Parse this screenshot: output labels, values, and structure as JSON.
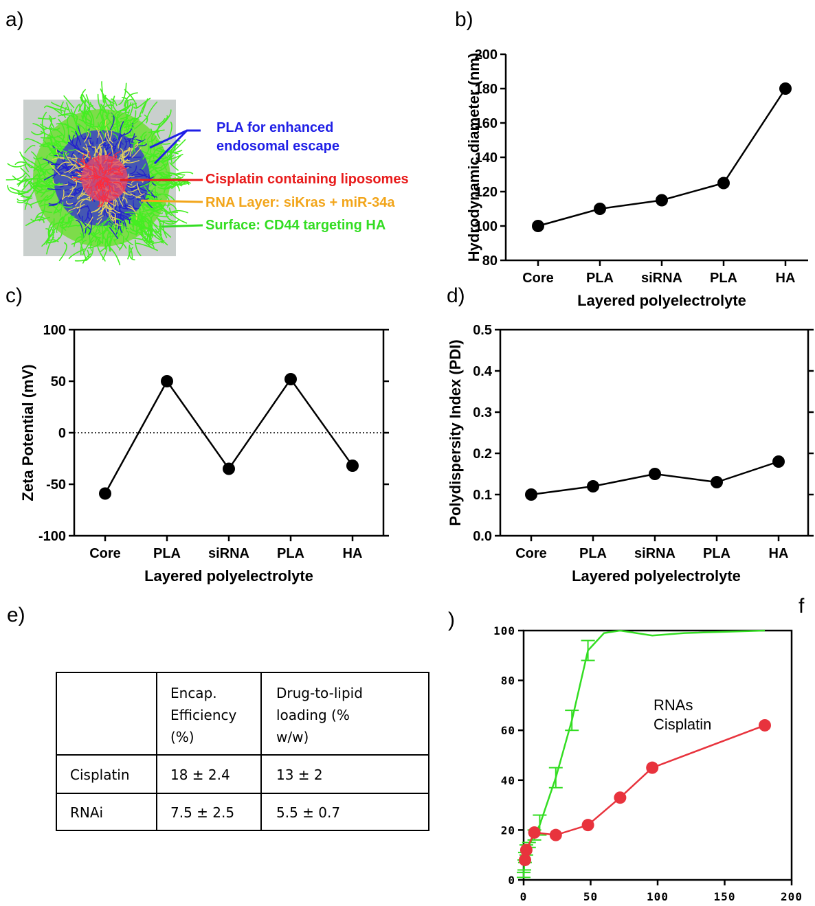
{
  "panel_labels": {
    "a": "a)",
    "b": "b)",
    "c": "c)",
    "d": "d)",
    "e": "e)",
    "f_paren": ")",
    "f": "f"
  },
  "diagram_a": {
    "annotations": [
      {
        "text": "PLA for enhanced",
        "color": "#1f1fe6"
      },
      {
        "text": "endosomal escape",
        "color": "#1f1fe6"
      },
      {
        "text": "Cisplatin containing liposomes",
        "color": "#e81c1c"
      },
      {
        "text": "RNA Layer: siKras + miR-34a",
        "color": "#f2a51a"
      },
      {
        "text": "Surface: CD44 targeting HA",
        "color": "#33dd22"
      }
    ]
  },
  "table_e": {
    "headers": [
      "",
      "Encap. Efficiency (%)",
      "Drug-to-lipid loading (% w/w)"
    ],
    "header_lines": [
      [
        ""
      ],
      [
        "Encap.",
        "Efficiency",
        "(%)"
      ],
      [
        "Drug-to-lipid",
        "loading (%",
        "w/w)"
      ]
    ],
    "rows": [
      [
        "Cisplatin",
        "18 ± 2.4",
        "13 ± 2"
      ],
      [
        "RNAi",
        "7.5 ± 2.5",
        "5.5 ± 0.7"
      ]
    ]
  },
  "chart_data": [
    {
      "id": "b",
      "type": "line",
      "categories": [
        "Core",
        "PLA",
        "siRNA",
        "PLA",
        "HA"
      ],
      "values": [
        100,
        110,
        115,
        125,
        180
      ],
      "xlabel": "Layered polyelectrolyte",
      "ylabel": "Hydrodynamic diameter (nm)",
      "ylim": [
        80,
        200
      ],
      "yticks": [
        "80",
        "100",
        "120",
        "140",
        "160",
        "180",
        "200"
      ],
      "color": "#000000"
    },
    {
      "id": "c",
      "type": "line",
      "categories": [
        "Core",
        "PLA",
        "siRNA",
        "PLA",
        "HA"
      ],
      "values": [
        -59,
        50,
        -35,
        52,
        -32
      ],
      "xlabel": "Layered polyelectrolyte",
      "ylabel": "Zeta Potential (mV)",
      "ylim": [
        -100,
        100
      ],
      "yticks": [
        "-100",
        "-50",
        "0",
        "50",
        "100"
      ],
      "reference_line": 0,
      "color": "#000000"
    },
    {
      "id": "d",
      "type": "line",
      "categories": [
        "Core",
        "PLA",
        "siRNA",
        "PLA",
        "HA"
      ],
      "values": [
        0.1,
        0.12,
        0.15,
        0.13,
        0.18
      ],
      "xlabel": "Layered polyelectrolyte",
      "ylabel": "Polydispersity Index (PDI)",
      "ylim": [
        0,
        0.5
      ],
      "yticks": [
        "0.0",
        "0.1",
        "0.2",
        "0.3",
        "0.4",
        "0.5"
      ],
      "color": "#000000"
    },
    {
      "id": "f",
      "type": "line",
      "xlim": [
        0,
        200
      ],
      "ylim": [
        0,
        100
      ],
      "xticks": [
        "0",
        "50",
        "100",
        "150",
        "200"
      ],
      "yticks": [
        "0",
        "20",
        "40",
        "60",
        "80",
        "100"
      ],
      "legend_labels": [
        "RNAs",
        "Cisplatin"
      ],
      "series": [
        {
          "color": "#33dd22",
          "x": [
            0,
            0.5,
            1,
            2,
            4,
            8,
            12,
            24,
            36,
            48,
            60,
            72,
            96,
            120,
            180
          ],
          "y": [
            2,
            6,
            9,
            12,
            14,
            18,
            22,
            41,
            64,
            92,
            99,
            100,
            98,
            99,
            100
          ],
          "err": [
            1,
            2,
            2,
            2,
            1,
            2,
            4,
            4,
            4,
            4,
            0,
            0,
            0,
            0,
            0
          ]
        },
        {
          "color": "#e8333d",
          "x": [
            1,
            2,
            8,
            24,
            48,
            72,
            96,
            180
          ],
          "y": [
            8,
            12,
            19,
            18,
            22,
            33,
            45,
            62
          ]
        }
      ]
    }
  ]
}
